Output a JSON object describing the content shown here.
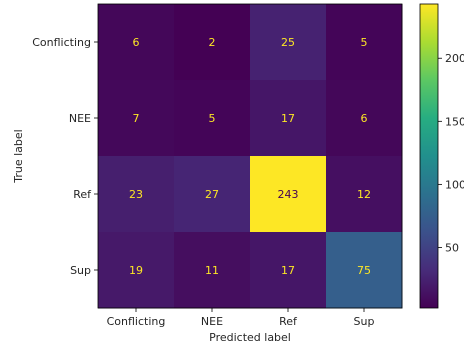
{
  "chart_data": {
    "type": "heatmap",
    "title": "",
    "xlabel": "Predicted label",
    "ylabel": "True label",
    "x_categories": [
      "Conflicting",
      "NEE",
      "Ref",
      "Sup"
    ],
    "y_categories": [
      "Conflicting",
      "NEE",
      "Ref",
      "Sup"
    ],
    "matrix": [
      [
        6,
        2,
        25,
        5
      ],
      [
        7,
        5,
        17,
        6
      ],
      [
        23,
        27,
        243,
        12
      ],
      [
        19,
        11,
        17,
        75
      ]
    ],
    "colormap": "viridis",
    "vmin": 2,
    "vmax": 243,
    "colorbar_ticks": [
      50,
      100,
      150,
      200
    ],
    "colorbar_tick_labels": [
      "50",
      "100",
      "150",
      "200"
    ],
    "text_color_light_cells": "#440154",
    "text_color_dark_cells": "#fde725"
  }
}
